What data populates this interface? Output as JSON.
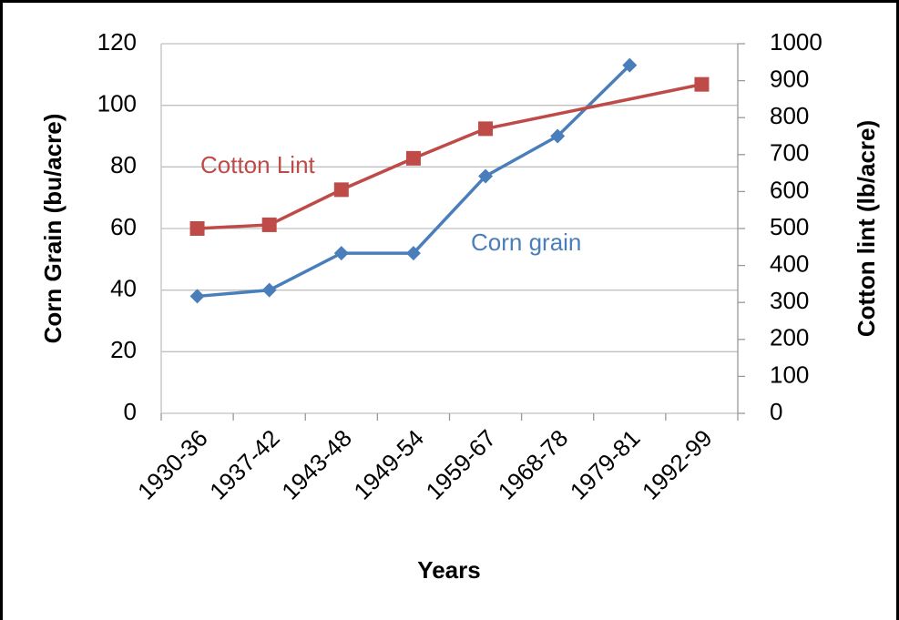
{
  "chart_data": {
    "type": "line",
    "categories": [
      "1930-36",
      "1937-42",
      "1943-48",
      "1949-54",
      "1959-67",
      "1968-78",
      "1979-81",
      "1992-99"
    ],
    "series": [
      {
        "name": "Corn grain",
        "color": "#4a7ebb",
        "marker": "diamond",
        "values": [
          38,
          40,
          52,
          52,
          77,
          90,
          113,
          null
        ]
      },
      {
        "name": "Cotton Lint",
        "color": "#be4b48",
        "marker": "square",
        "axis": "y2",
        "connect_gaps": true,
        "values": [
          500,
          510,
          605,
          690,
          770,
          null,
          null,
          890
        ]
      }
    ],
    "annotations": [
      "Cotton Lint",
      "Corn grain"
    ],
    "xlabel": "Years",
    "ylabel": "Corn Grain (bu/acre)",
    "y2label": "Cotton lint (lb/acre)",
    "ylim": [
      0,
      120
    ],
    "yticks": [
      0,
      20,
      40,
      60,
      80,
      100,
      120
    ],
    "y2lim": [
      0,
      1000
    ],
    "y2ticks": [
      0,
      100,
      200,
      300,
      400,
      500,
      600,
      700,
      800,
      900,
      1000
    ],
    "grid": true
  }
}
